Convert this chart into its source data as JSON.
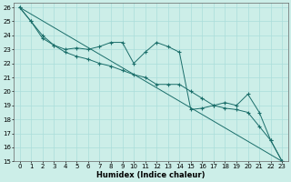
{
  "xlabel": "Humidex (Indice chaleur)",
  "background_color": "#cceee8",
  "grid_color": "#aaddda",
  "line_color": "#1a6e6a",
  "xlim": [
    -0.5,
    23.5
  ],
  "ylim": [
    15,
    26.3
  ],
  "yticks": [
    15,
    16,
    17,
    18,
    19,
    20,
    21,
    22,
    23,
    24,
    25,
    26
  ],
  "xticks": [
    0,
    1,
    2,
    3,
    4,
    5,
    6,
    7,
    8,
    9,
    10,
    11,
    12,
    13,
    14,
    15,
    16,
    17,
    18,
    19,
    20,
    21,
    22,
    23
  ],
  "series": [
    {
      "x": [
        0,
        1,
        2,
        3,
        4,
        5,
        6,
        7,
        8,
        9,
        10,
        11,
        12,
        13,
        14,
        15,
        16,
        17,
        18,
        19,
        20,
        21,
        22,
        23
      ],
      "y": [
        26,
        25,
        23.8,
        23.3,
        23.0,
        23.1,
        23.0,
        23.2,
        23.5,
        23.5,
        22.0,
        22.8,
        23.5,
        23.2,
        22.8,
        18.7,
        18.8,
        19.0,
        19.2,
        19.0,
        19.8,
        18.5,
        16.5,
        15.0
      ],
      "marker": "+"
    },
    {
      "x": [
        0,
        23
      ],
      "y": [
        26,
        15
      ],
      "marker": null
    },
    {
      "x": [
        0,
        1,
        2,
        3,
        4,
        5,
        6,
        7,
        8,
        9,
        10,
        11,
        12,
        13,
        14,
        15,
        16,
        17,
        18,
        19,
        20,
        21,
        22,
        23
      ],
      "y": [
        26,
        25,
        24.0,
        23.3,
        22.8,
        22.5,
        22.3,
        22.0,
        21.8,
        21.5,
        21.2,
        21.0,
        20.5,
        20.5,
        20.5,
        20.0,
        19.5,
        19.0,
        18.8,
        18.7,
        18.5,
        17.5,
        16.5,
        15.0
      ],
      "marker": "+"
    }
  ]
}
